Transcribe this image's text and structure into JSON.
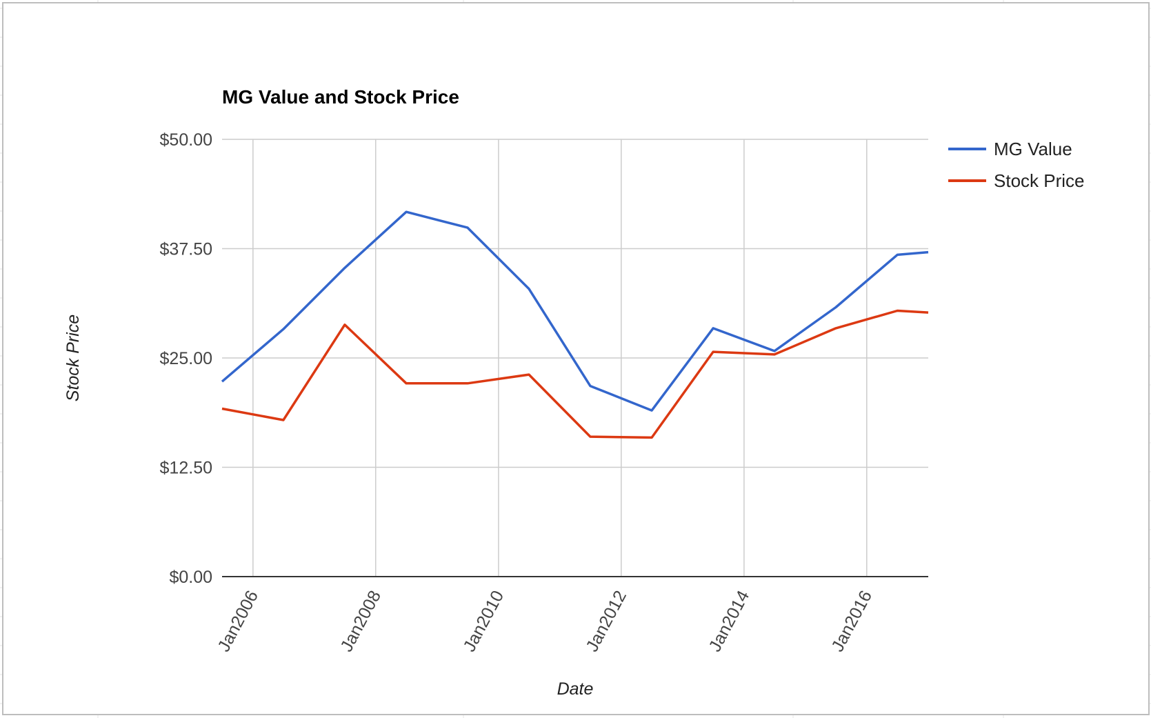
{
  "chart_data": {
    "type": "line",
    "title": "MG Value and Stock Price",
    "xlabel": "Date",
    "ylabel": "Stock Price",
    "x": [
      "2005-07-01",
      "2006-07-01",
      "2007-07-01",
      "2008-07-01",
      "2009-07-01",
      "2010-07-01",
      "2011-07-01",
      "2012-07-01",
      "2013-07-01",
      "2014-07-01",
      "2015-07-01",
      "2016-07-01",
      "2017-01-01"
    ],
    "series": [
      {
        "name": "MG Value",
        "color": "#3366cc",
        "values": [
          22.3,
          28.3,
          35.3,
          41.7,
          39.9,
          32.9,
          21.8,
          19.0,
          28.4,
          25.8,
          30.8,
          36.8,
          37.1
        ]
      },
      {
        "name": "Stock Price",
        "color": "#dc3912",
        "values": [
          19.2,
          17.9,
          28.8,
          22.1,
          22.1,
          23.1,
          16.0,
          15.9,
          25.7,
          25.4,
          28.4,
          30.4,
          30.2
        ]
      }
    ],
    "xlim": [
      "2005-07-01",
      "2017-01-01"
    ],
    "ylim": [
      0,
      50
    ],
    "yticks": [
      "$0.00",
      "$12.50",
      "$25.00",
      "$37.50",
      "$50.00"
    ],
    "ytick_values": [
      0,
      12.5,
      25,
      37.5,
      50
    ],
    "xticks": [
      "Jan2006",
      "Jan2008",
      "Jan2010",
      "Jan2012",
      "Jan2014",
      "Jan2016"
    ],
    "xtick_values": [
      "2006-01-01",
      "2008-01-01",
      "2010-01-01",
      "2012-01-01",
      "2014-01-01",
      "2016-01-01"
    ],
    "grid": true,
    "legend": "right"
  }
}
